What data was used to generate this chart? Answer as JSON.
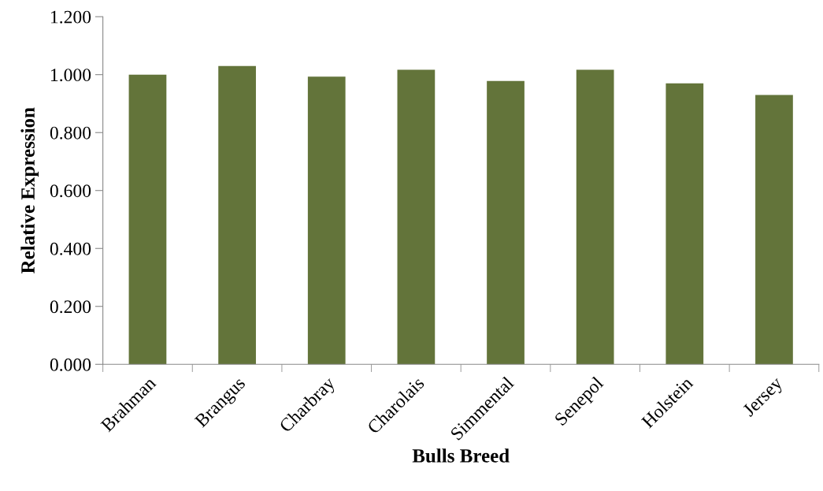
{
  "chart_data": {
    "type": "bar",
    "xlabel": "Bulls Breed",
    "ylabel": "Relative Expression",
    "categories": [
      "Brahman",
      "Brangus",
      "Charbray",
      "Charolais",
      "Simmental",
      "Senepol",
      "Holstein",
      "Jersey"
    ],
    "values": [
      1.0,
      1.03,
      0.993,
      1.017,
      0.978,
      1.017,
      0.97,
      0.93
    ],
    "color": "#63743a",
    "ylim": [
      0,
      1.2
    ],
    "yticks": [
      {
        "value": 0,
        "label": "0.000"
      },
      {
        "value": 0.2,
        "label": "0.200"
      },
      {
        "value": 0.4,
        "label": "0.400"
      },
      {
        "value": 0.6,
        "label": "0.600"
      },
      {
        "value": 0.8,
        "label": "0.800"
      },
      {
        "value": 1.0,
        "label": "1.000"
      },
      {
        "value": 1.2,
        "label": "1.200"
      }
    ],
    "grid": false,
    "legend": false
  }
}
